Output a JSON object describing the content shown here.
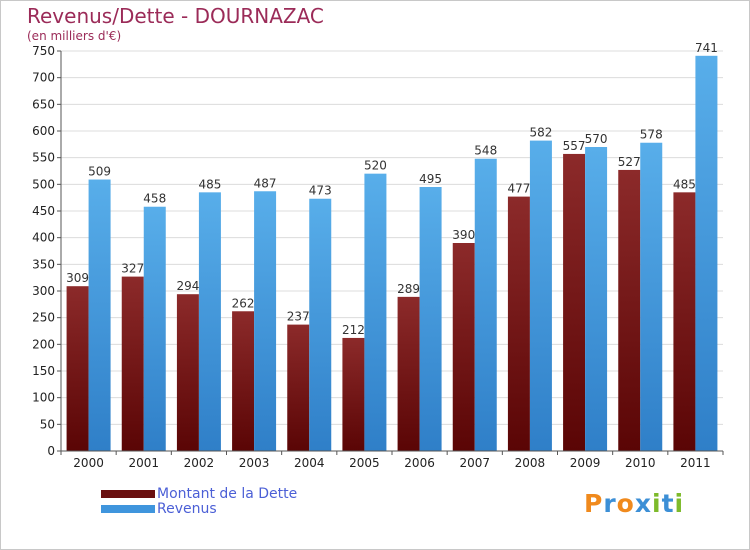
{
  "header": {
    "title": "Revenus/Dette - DOURNAZAC",
    "subtitle": "(en milliers d'€)"
  },
  "colors": {
    "dette": "#7a1717",
    "revenus": "#3f95dd",
    "title": "#9b2b58",
    "legend_text": "#4b5fd6"
  },
  "legend": {
    "items": [
      {
        "label": "Montant de la Dette",
        "color": "#6a0f0f"
      },
      {
        "label": "Revenus",
        "color": "#3f95dd"
      }
    ]
  },
  "logo": {
    "text": "Proxiti",
    "letters": [
      "P",
      "r",
      "o",
      "x",
      "i",
      "t",
      "i"
    ],
    "colors": [
      "#f08a1d",
      "#3c8fd6",
      "#f08a1d",
      "#3c8fd6",
      "#7dba2a",
      "#3c8fd6",
      "#7dba2a"
    ]
  },
  "chart_data": {
    "type": "bar",
    "title": "Revenus/Dette - DOURNAZAC",
    "subtitle": "(en milliers d'€)",
    "xlabel": "",
    "ylabel": "",
    "ylim": [
      0,
      750
    ],
    "yticks": [
      0,
      50,
      100,
      150,
      200,
      250,
      300,
      350,
      400,
      450,
      500,
      550,
      600,
      650,
      700,
      750
    ],
    "grid": true,
    "legend_position": "bottom-left",
    "categories": [
      "2000",
      "2001",
      "2002",
      "2003",
      "2004",
      "2005",
      "2006",
      "2007",
      "2008",
      "2009",
      "2010",
      "2011"
    ],
    "series": [
      {
        "name": "Montant de la Dette",
        "values": [
          309,
          327,
          294,
          262,
          237,
          212,
          289,
          390,
          477,
          557,
          527,
          485
        ]
      },
      {
        "name": "Revenus",
        "values": [
          509,
          458,
          485,
          487,
          473,
          520,
          495,
          548,
          582,
          570,
          578,
          741
        ]
      }
    ]
  }
}
